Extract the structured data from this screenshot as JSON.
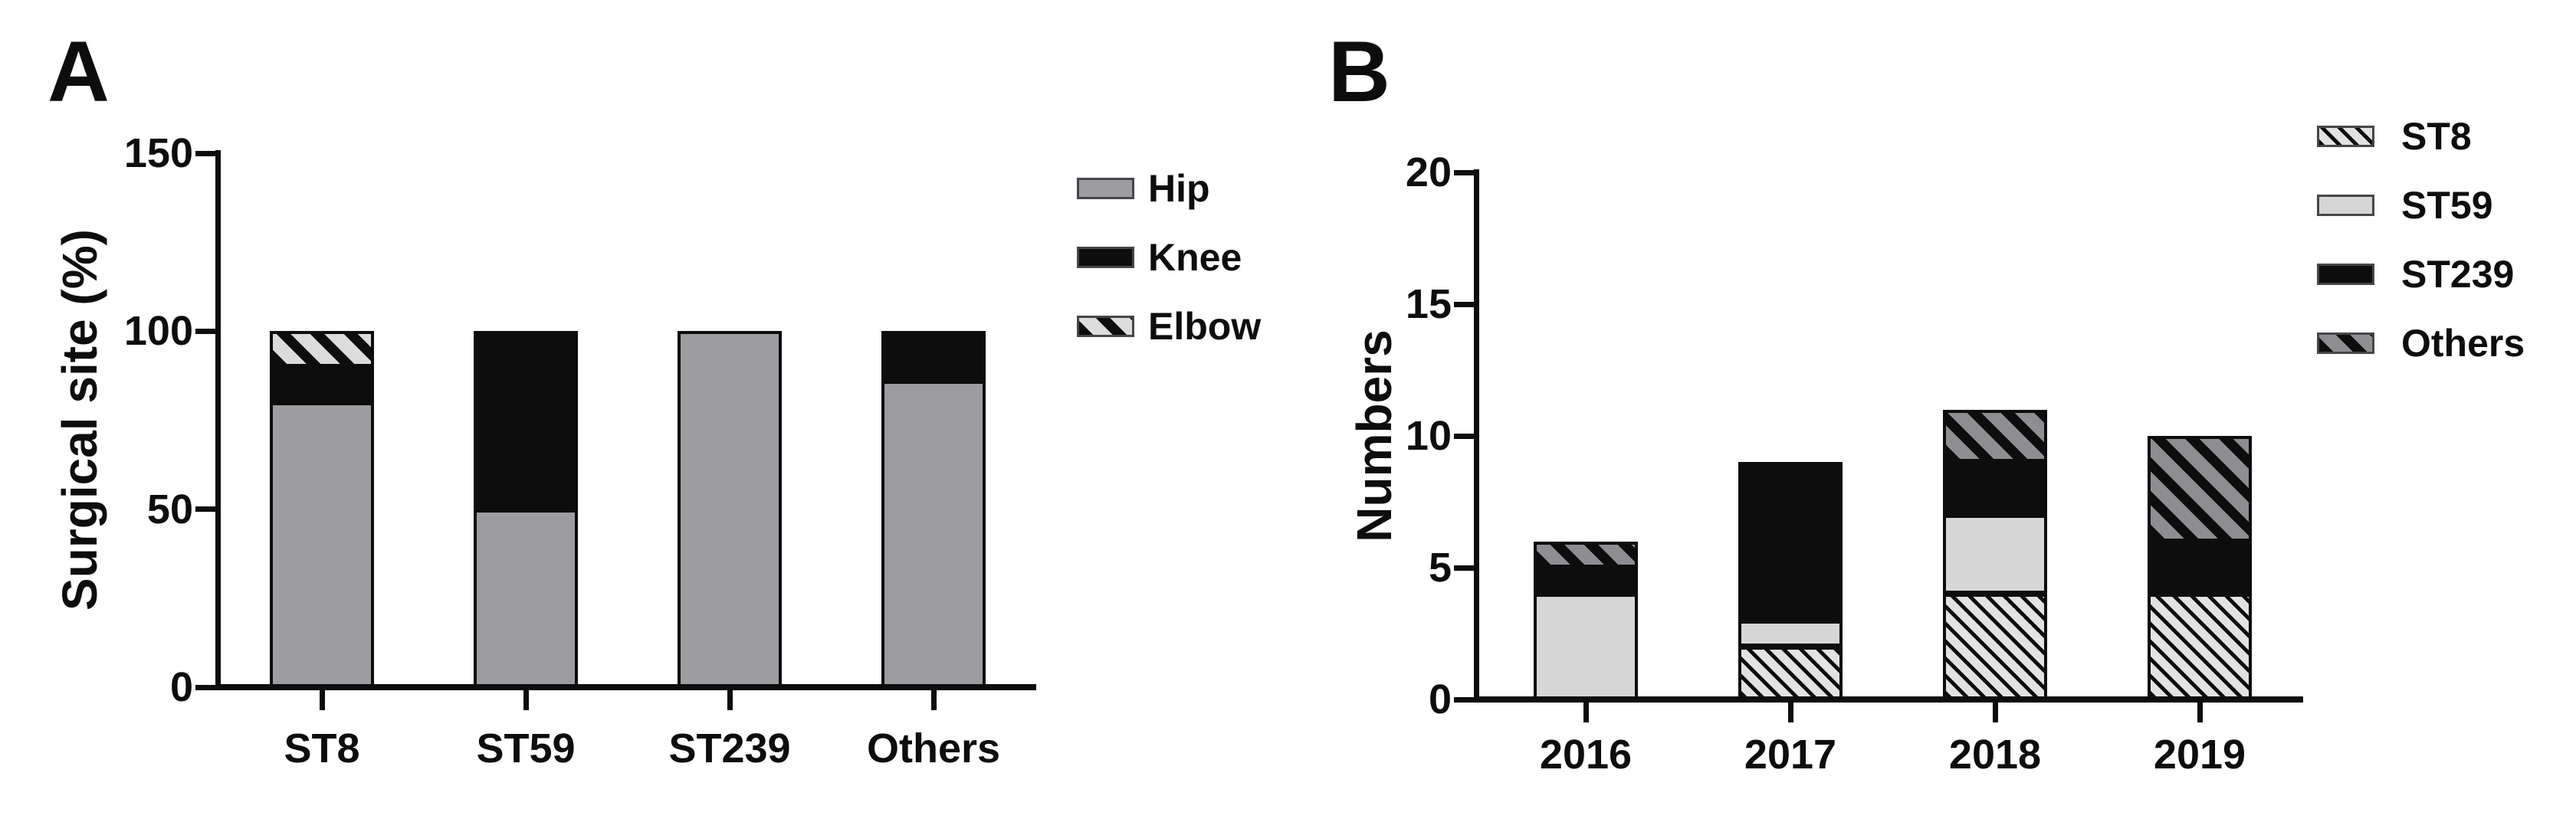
{
  "figure_background": "#ffffff",
  "line_color": "#0d0d0d",
  "chart_data": [
    {
      "type": "bar",
      "stacked": true,
      "panel_letter": "A",
      "title": "",
      "xlabel": "",
      "ylabel": "Surgical site (%)",
      "ylim": [
        0,
        150
      ],
      "yticks": [
        0,
        50,
        100,
        150
      ],
      "grid": false,
      "legend_position": "right",
      "categories": [
        "ST8",
        "ST59",
        "ST239",
        "Others"
      ],
      "series": [
        {
          "name": "Hip",
          "pattern": "solid",
          "fill": "#9d9da1",
          "values": [
            80,
            50,
            100,
            86
          ]
        },
        {
          "name": "Knee",
          "pattern": "solid",
          "fill": "#0d0d0d",
          "values": [
            10,
            50,
            0,
            14
          ]
        },
        {
          "name": "Elbow",
          "pattern": "diag-bold",
          "fill": "#dcdcdc",
          "stripe": "#0d0d0d",
          "values": [
            10,
            0,
            0,
            0
          ]
        }
      ]
    },
    {
      "type": "bar",
      "stacked": true,
      "panel_letter": "B",
      "title": "",
      "xlabel": "",
      "ylabel": "Numbers",
      "ylim": [
        0,
        20
      ],
      "yticks": [
        0,
        5,
        10,
        15,
        20
      ],
      "grid": false,
      "legend_position": "right",
      "categories": [
        "2016",
        "2017",
        "2018",
        "2019"
      ],
      "series": [
        {
          "name": "ST8",
          "pattern": "diag-thin",
          "fill": "#e2e2e2",
          "stripe": "#0d0d0d",
          "values": [
            0,
            2,
            4,
            4
          ]
        },
        {
          "name": "ST59",
          "pattern": "solid",
          "fill": "#d6d6d6",
          "values": [
            4,
            1,
            3,
            0
          ]
        },
        {
          "name": "ST239",
          "pattern": "solid",
          "fill": "#0d0d0d",
          "values": [
            1,
            6,
            2,
            2
          ]
        },
        {
          "name": "Others",
          "pattern": "diag-bold",
          "fill": "#8e8e92",
          "stripe": "#0d0d0d",
          "values": [
            1,
            0,
            2,
            4
          ]
        }
      ]
    }
  ]
}
